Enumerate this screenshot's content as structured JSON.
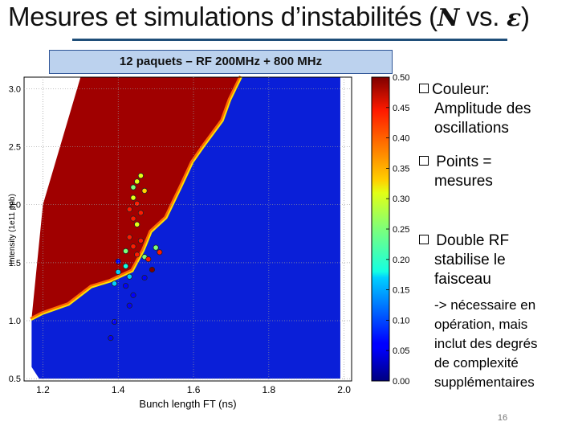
{
  "slide": {
    "title_text": "Mesures et simulations d’instabilités (",
    "title_math_n": "N",
    "title_vs": " vs. ",
    "title_math_eps": "ε",
    "title_close": ")",
    "banner": "12 paquets – RF 200MHz + 800 MHz",
    "page_number": "16",
    "accent_color": "#1f4e79"
  },
  "bullets": [
    {
      "lines": [
        "Couleur:",
        "Amplitude des",
        "oscillations"
      ],
      "red": false
    },
    {
      "lines": [
        " Points =",
        "mesures"
      ],
      "red": false
    },
    {
      "lines": [
        " Double RF",
        "stabilise le",
        "faisceau"
      ],
      "red": false
    },
    {
      "lines": [
        "-> nécessaire en",
        "opération, mais",
        "inclut des degrés",
        "de complexité",
        "supplémentaires"
      ],
      "red": true
    }
  ],
  "chart_data": {
    "type": "heatmap",
    "xlabel": "Bunch length FT (ns)",
    "ylabel": "Intensity (1e11 ppb)",
    "xlim": [
      1.15,
      2.02
    ],
    "ylim": [
      0.48,
      3.1
    ],
    "xticks": [
      "1.2",
      "1.4",
      "1.6",
      "1.8",
      "2.0"
    ],
    "yticks": [
      "0.5",
      "1.0",
      "1.5",
      "2.0",
      "2.5",
      "3.0"
    ],
    "colorbar": {
      "range": [
        0.0,
        0.5
      ],
      "ticks": [
        "0.00",
        "0.05",
        "0.10",
        "0.15",
        "0.20",
        "0.25",
        "0.30",
        "0.35",
        "0.40",
        "0.45",
        "0.50"
      ],
      "colormap": "jet"
    },
    "stability_boundary": [
      {
        "x": 1.17,
        "y": 1.0
      },
      {
        "x": 1.2,
        "y": 1.05
      },
      {
        "x": 1.27,
        "y": 1.13
      },
      {
        "x": 1.33,
        "y": 1.28
      },
      {
        "x": 1.38,
        "y": 1.33
      },
      {
        "x": 1.44,
        "y": 1.42
      },
      {
        "x": 1.47,
        "y": 1.6
      },
      {
        "x": 1.49,
        "y": 1.76
      },
      {
        "x": 1.53,
        "y": 1.88
      },
      {
        "x": 1.57,
        "y": 2.15
      },
      {
        "x": 1.6,
        "y": 2.36
      },
      {
        "x": 1.63,
        "y": 2.5
      },
      {
        "x": 1.68,
        "y": 2.72
      },
      {
        "x": 1.7,
        "y": 2.9
      },
      {
        "x": 1.73,
        "y": 3.1
      }
    ],
    "measurements": [
      {
        "x": 1.46,
        "y": 2.25,
        "v": 0.3
      },
      {
        "x": 1.45,
        "y": 2.2,
        "v": 0.28
      },
      {
        "x": 1.44,
        "y": 2.15,
        "v": 0.25
      },
      {
        "x": 1.47,
        "y": 2.12,
        "v": 0.33
      },
      {
        "x": 1.44,
        "y": 2.06,
        "v": 0.31
      },
      {
        "x": 1.45,
        "y": 2.01,
        "v": 0.36
      },
      {
        "x": 1.43,
        "y": 1.96,
        "v": 0.4
      },
      {
        "x": 1.46,
        "y": 1.93,
        "v": 0.38
      },
      {
        "x": 1.44,
        "y": 1.88,
        "v": 0.42
      },
      {
        "x": 1.45,
        "y": 1.83,
        "v": 0.3
      },
      {
        "x": 1.43,
        "y": 1.72,
        "v": 0.35
      },
      {
        "x": 1.46,
        "y": 1.69,
        "v": 0.41
      },
      {
        "x": 1.44,
        "y": 1.64,
        "v": 0.44
      },
      {
        "x": 1.42,
        "y": 1.6,
        "v": 0.2
      },
      {
        "x": 1.45,
        "y": 1.57,
        "v": 0.37
      },
      {
        "x": 1.47,
        "y": 1.55,
        "v": 0.25
      },
      {
        "x": 1.4,
        "y": 1.51,
        "v": 0.05
      },
      {
        "x": 1.42,
        "y": 1.47,
        "v": 0.18
      },
      {
        "x": 1.4,
        "y": 1.42,
        "v": 0.1
      },
      {
        "x": 1.43,
        "y": 1.38,
        "v": 0.07
      },
      {
        "x": 1.39,
        "y": 1.32,
        "v": 0.16
      },
      {
        "x": 1.42,
        "y": 1.3,
        "v": 0.06
      },
      {
        "x": 1.44,
        "y": 1.22,
        "v": 0.04
      },
      {
        "x": 1.43,
        "y": 1.13,
        "v": 0.05
      },
      {
        "x": 1.39,
        "y": 0.99,
        "v": 0.03
      },
      {
        "x": 1.38,
        "y": 0.85,
        "v": 0.04
      },
      {
        "x": 1.5,
        "y": 1.63,
        "v": 0.24
      },
      {
        "x": 1.51,
        "y": 1.59,
        "v": 0.4
      },
      {
        "x": 1.48,
        "y": 1.53,
        "v": 0.34
      },
      {
        "x": 1.49,
        "y": 1.44,
        "v": 0.45
      },
      {
        "x": 1.47,
        "y": 1.37,
        "v": 0.06
      }
    ]
  }
}
